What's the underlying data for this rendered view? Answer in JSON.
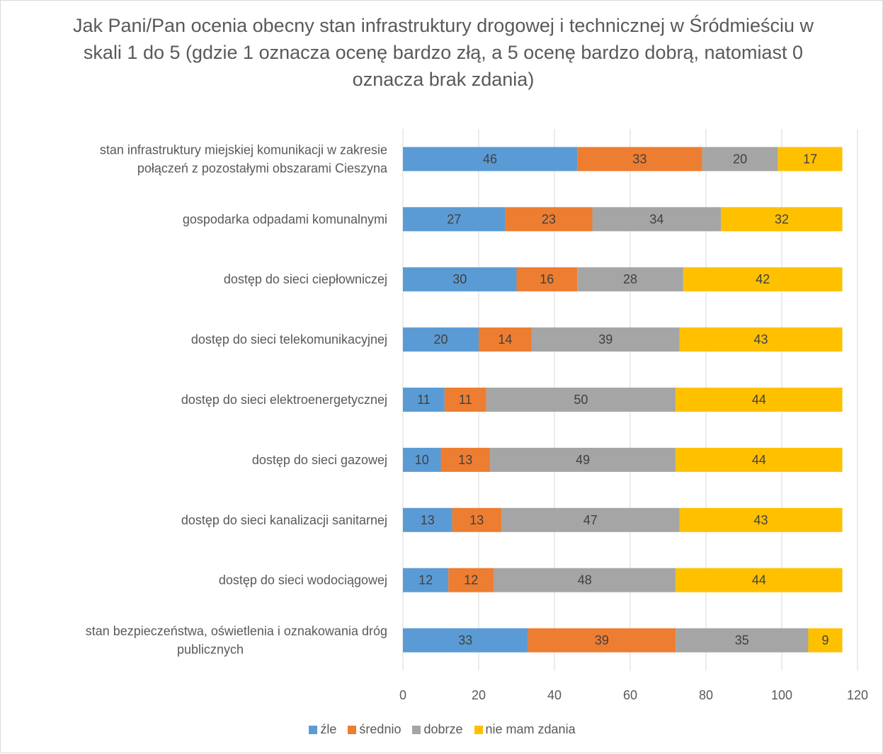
{
  "chart_data": {
    "type": "bar",
    "orientation": "horizontal",
    "stacked": true,
    "title": "Jak Pani/Pan ocenia obecny stan infrastruktury drogowej i technicznej w Śródmieściu w skali 1 do 5 (gdzie 1 oznacza ocenę bardzo złą, a 5 ocenę bardzo dobrą, natomiast 0 oznacza brak zdania)",
    "categories": [
      "stan infrastruktury  miejskiej komunikacji w zakresie połączeń z pozostałymi obszarami Cieszyna",
      "gospodarka odpadami komunalnymi",
      "dostęp do sieci ciepłowniczej",
      "dostęp do sieci telekomunikacyjnej",
      "dostęp do sieci elektroenergetycznej",
      "dostęp do sieci gazowej",
      "dostęp do sieci kanalizacji sanitarnej",
      "dostęp do sieci wodociągowej",
      "stan bezpieczeństwa, oświetlenia i oznakowania dróg publicznych"
    ],
    "series": [
      {
        "name": "źle",
        "color": "#5b9bd5",
        "values": [
          46,
          27,
          30,
          20,
          11,
          10,
          13,
          12,
          33
        ]
      },
      {
        "name": "średnio",
        "color": "#ed7d31",
        "values": [
          33,
          23,
          16,
          14,
          11,
          13,
          13,
          12,
          39
        ]
      },
      {
        "name": "dobrze",
        "color": "#a5a5a5",
        "values": [
          20,
          34,
          28,
          39,
          50,
          49,
          47,
          48,
          35
        ]
      },
      {
        "name": "nie mam zdania",
        "color": "#ffc000",
        "values": [
          17,
          32,
          42,
          43,
          44,
          44,
          43,
          44,
          9
        ]
      }
    ],
    "xlim": [
      0,
      120
    ],
    "xticks": [
      "0",
      "20",
      "40",
      "60",
      "80",
      "100",
      "120"
    ],
    "grid": true,
    "legend_position": "bottom"
  }
}
